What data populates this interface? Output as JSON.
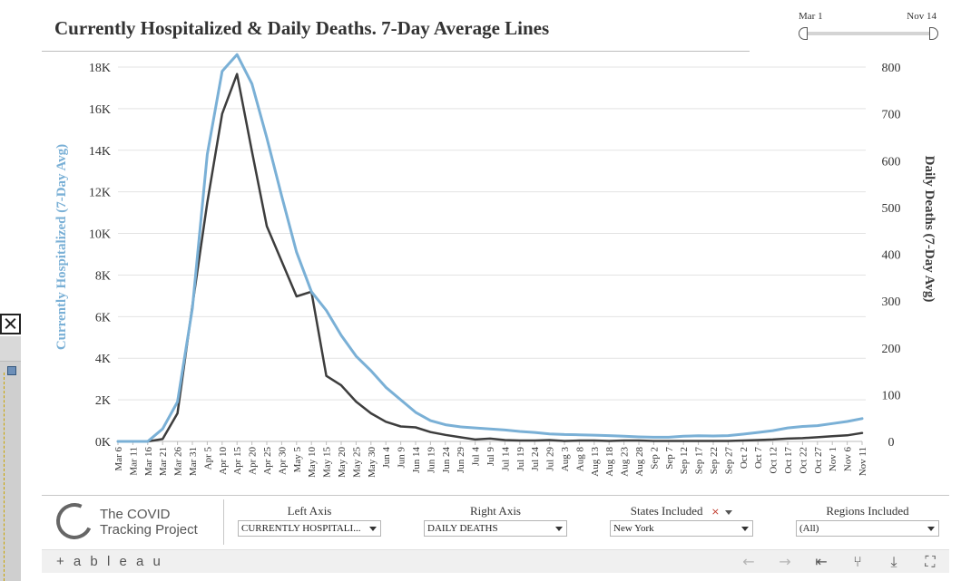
{
  "title": "Currently Hospitalized & Daily Deaths. 7-Day Average Lines",
  "date_range": {
    "start_label": "Mar 1",
    "end_label": "Nov 14"
  },
  "colors": {
    "hospitalized": "#7ab0d6",
    "deaths": "#3d3d3d",
    "grid": "#e3e3e3",
    "text": "#333333"
  },
  "chart_data": {
    "type": "line",
    "x": [
      "Mar 6",
      "Mar 11",
      "Mar 16",
      "Mar 21",
      "Mar 26",
      "Mar 31",
      "Apr 5",
      "Apr 10",
      "Apr 15",
      "Apr 20",
      "Apr 25",
      "Apr 30",
      "May 5",
      "May 10",
      "May 15",
      "May 20",
      "May 25",
      "May 30",
      "Jun 4",
      "Jun 9",
      "Jun 14",
      "Jun 19",
      "Jun 24",
      "Jun 29",
      "Jul 4",
      "Jul 9",
      "Jul 14",
      "Jul 19",
      "Jul 24",
      "Jul 29",
      "Aug 3",
      "Aug 8",
      "Aug 13",
      "Aug 18",
      "Aug 23",
      "Aug 28",
      "Sep 2",
      "Sep 7",
      "Sep 12",
      "Sep 17",
      "Sep 22",
      "Sep 27",
      "Oct 2",
      "Oct 7",
      "Oct 12",
      "Oct 17",
      "Oct 22",
      "Oct 27",
      "Nov 1",
      "Nov 6",
      "Nov 11"
    ],
    "series": [
      {
        "axis": "left",
        "color": "#7ab0d6",
        "values": [
          0,
          0,
          0,
          600,
          1900,
          6400,
          13800,
          17800,
          18600,
          17200,
          14600,
          11800,
          9100,
          7200,
          6300,
          5100,
          4100,
          3400,
          2600,
          2000,
          1400,
          1000,
          800,
          700,
          650,
          600,
          550,
          480,
          430,
          360,
          330,
          320,
          300,
          280,
          250,
          220,
          200,
          200,
          250,
          270,
          260,
          280,
          350,
          430,
          520,
          650,
          720,
          760,
          860,
          960,
          1100
        ]
      },
      {
        "axis": "right",
        "color": "#3d3d3d",
        "values": [
          0,
          0,
          0,
          5,
          60,
          290,
          510,
          700,
          785,
          620,
          460,
          385,
          310,
          320,
          140,
          120,
          85,
          60,
          42,
          32,
          30,
          20,
          14,
          9,
          4,
          6,
          3,
          2,
          2,
          3,
          1,
          2,
          2,
          1,
          2,
          2,
          1,
          1,
          1,
          1,
          1,
          1,
          2,
          3,
          4,
          6,
          7,
          9,
          11,
          13,
          18
        ]
      }
    ],
    "ylabel_left": "Currently Hospitalized (7-Day Avg)",
    "ylabel_right": "Daily Deaths (7-Day Avg)",
    "yticks_left": [
      "0K",
      "2K",
      "4K",
      "6K",
      "8K",
      "10K",
      "12K",
      "14K",
      "16K",
      "18K"
    ],
    "yticks_right": [
      "0",
      "100",
      "200",
      "300",
      "400",
      "500",
      "600",
      "700",
      "800"
    ],
    "ylim_left": [
      0,
      18000
    ],
    "ylim_right": [
      0,
      800
    ],
    "grid": true
  },
  "filters": {
    "left_axis": {
      "label": "Left Axis",
      "value": "CURRENTLY HOSPITALI..."
    },
    "right_axis": {
      "label": "Right Axis",
      "value": "DAILY DEATHS"
    },
    "states": {
      "label": "States Included",
      "value": "New York"
    },
    "regions": {
      "label": "Regions Included",
      "value": "(All)"
    }
  },
  "logo": {
    "line1": "The COVID",
    "line2": "Tracking Project"
  },
  "toolbar": {
    "brand": "+ a b l e a u",
    "icons": [
      "undo-icon",
      "redo-icon",
      "revert-icon",
      "share-icon",
      "download-icon",
      "fullscreen-icon"
    ]
  }
}
